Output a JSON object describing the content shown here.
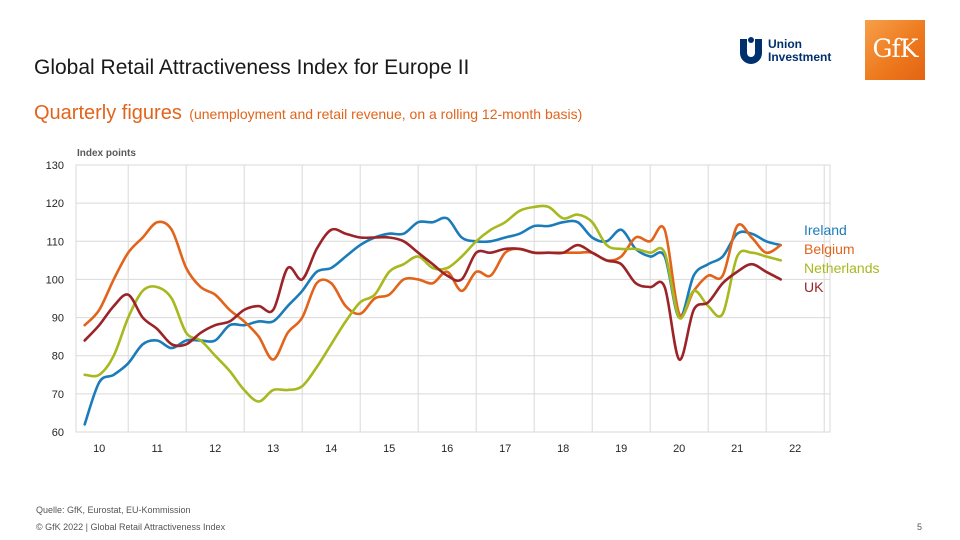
{
  "slide": {
    "title": "Global Retail Attractiveness Index for Europe II",
    "subtitle_main": "Quarterly figures",
    "subtitle_note": "(unemployment  and retail revenue,  on a rolling 12-month basis)",
    "source": "Quelle: GfK, Eurostat, EU-Kommission",
    "copyright": "© GfK 2022 | Global Retail Attractiveness Index",
    "page_number": "5"
  },
  "logos": {
    "union_investment": {
      "line1": "Union",
      "line2": "Investment",
      "color": "#00306e"
    },
    "gfk": {
      "text": "GfK",
      "color": "#ee7a1e"
    }
  },
  "chart_data": {
    "type": "line",
    "title": "",
    "ylabel": "Index points",
    "xlabel": "",
    "ylim": [
      60,
      130
    ],
    "yticks": [
      60,
      70,
      80,
      90,
      100,
      110,
      120,
      130
    ],
    "xlim": [
      9.6,
      22.6
    ],
    "xticks": [
      10,
      11,
      12,
      13,
      14,
      15,
      16,
      17,
      18,
      19,
      20,
      21,
      22
    ],
    "xtick_labels": [
      "10",
      "11",
      "12",
      "13",
      "14",
      "15",
      "16",
      "17",
      "18",
      "19",
      "20",
      "21",
      "22"
    ],
    "grid": true,
    "legend_position": "right of last data points",
    "series": [
      {
        "name": "Ireland",
        "color": "#1b7cb9",
        "x": [
          9.75,
          10.0,
          10.25,
          10.5,
          10.75,
          11.0,
          11.25,
          11.5,
          11.75,
          12.0,
          12.25,
          12.5,
          12.75,
          13.0,
          13.25,
          13.5,
          13.75,
          14.0,
          14.25,
          14.5,
          14.75,
          15.0,
          15.25,
          15.5,
          15.75,
          16.0,
          16.25,
          16.5,
          16.75,
          17.0,
          17.25,
          17.5,
          17.75,
          18.0,
          18.25,
          18.5,
          18.75,
          19.0,
          19.25,
          19.5,
          19.75,
          20.0,
          20.25,
          20.5,
          20.75,
          21.0,
          21.25,
          21.5,
          21.75
        ],
        "values": [
          62,
          73,
          75,
          78,
          83,
          84,
          82,
          84,
          84,
          84,
          88,
          88,
          89,
          89,
          93,
          97,
          102,
          103,
          106,
          109,
          111,
          112,
          112,
          115,
          115,
          116,
          111,
          110,
          110,
          111,
          112,
          114,
          114,
          115,
          115,
          111,
          110,
          113,
          108,
          106,
          106,
          90,
          101,
          104,
          106,
          112,
          112,
          110,
          109
        ]
      },
      {
        "name": "Belgium",
        "color": "#e2641b",
        "x": [
          9.75,
          10.0,
          10.25,
          10.5,
          10.75,
          11.0,
          11.25,
          11.5,
          11.75,
          12.0,
          12.25,
          12.5,
          12.75,
          13.0,
          13.25,
          13.5,
          13.75,
          14.0,
          14.25,
          14.5,
          14.75,
          15.0,
          15.25,
          15.5,
          15.75,
          16.0,
          16.25,
          16.5,
          16.75,
          17.0,
          17.25,
          17.5,
          17.75,
          18.0,
          18.25,
          18.5,
          18.75,
          19.0,
          19.25,
          19.5,
          19.75,
          20.0,
          20.25,
          20.5,
          20.75,
          21.0,
          21.25,
          21.5,
          21.75
        ],
        "values": [
          88,
          92,
          100,
          107,
          111,
          115,
          113,
          103,
          98,
          96,
          92,
          89,
          85,
          79,
          86,
          90,
          99,
          99,
          93,
          91,
          95,
          96,
          100,
          100,
          99,
          102,
          97,
          102,
          101,
          107,
          108,
          107,
          107,
          107,
          107,
          107,
          105,
          106,
          111,
          110,
          113,
          91,
          97,
          101,
          101,
          114,
          111,
          107,
          109
        ]
      },
      {
        "name": "Netherlands",
        "color": "#a8b81f",
        "x": [
          9.75,
          10.0,
          10.25,
          10.5,
          10.75,
          11.0,
          11.25,
          11.5,
          11.75,
          12.0,
          12.25,
          12.5,
          12.75,
          13.0,
          13.25,
          13.5,
          13.75,
          14.0,
          14.25,
          14.5,
          14.75,
          15.0,
          15.25,
          15.5,
          15.75,
          16.0,
          16.25,
          16.5,
          16.75,
          17.0,
          17.25,
          17.5,
          17.75,
          18.0,
          18.25,
          18.5,
          18.75,
          19.0,
          19.25,
          19.5,
          19.75,
          20.0,
          20.25,
          20.5,
          20.75,
          21.0,
          21.25,
          21.5,
          21.75
        ],
        "values": [
          75,
          75,
          80,
          90,
          97,
          98,
          95,
          86,
          84,
          80,
          76,
          71,
          68,
          71,
          71,
          72,
          77,
          83,
          89,
          94,
          96,
          102,
          104,
          106,
          103,
          103,
          106,
          110,
          113,
          115,
          118,
          119,
          119,
          116,
          117,
          115,
          109,
          108,
          108,
          107,
          107,
          90,
          97,
          93,
          91,
          106,
          107,
          106,
          105
        ]
      },
      {
        "name": "UK",
        "color": "#9b2429",
        "x": [
          9.75,
          10.0,
          10.25,
          10.5,
          10.75,
          11.0,
          11.25,
          11.5,
          11.75,
          12.0,
          12.25,
          12.5,
          12.75,
          13.0,
          13.25,
          13.5,
          13.75,
          14.0,
          14.25,
          14.5,
          14.75,
          15.0,
          15.25,
          15.5,
          15.75,
          16.0,
          16.25,
          16.5,
          16.75,
          17.0,
          17.25,
          17.5,
          17.75,
          18.0,
          18.25,
          18.5,
          18.75,
          19.0,
          19.25,
          19.5,
          19.75,
          20.0,
          20.25,
          20.5,
          20.75,
          21.0,
          21.25,
          21.5,
          21.75
        ],
        "values": [
          84,
          88,
          93,
          96,
          90,
          87,
          83,
          83,
          86,
          88,
          89,
          92,
          93,
          92,
          103,
          100,
          108,
          113,
          112,
          111,
          111,
          111,
          110,
          107,
          104,
          101,
          100,
          107,
          107,
          108,
          108,
          107,
          107,
          107,
          109,
          107,
          105,
          104,
          99,
          98,
          98,
          79,
          92,
          94,
          99,
          102,
          104,
          102,
          100
        ]
      }
    ]
  }
}
